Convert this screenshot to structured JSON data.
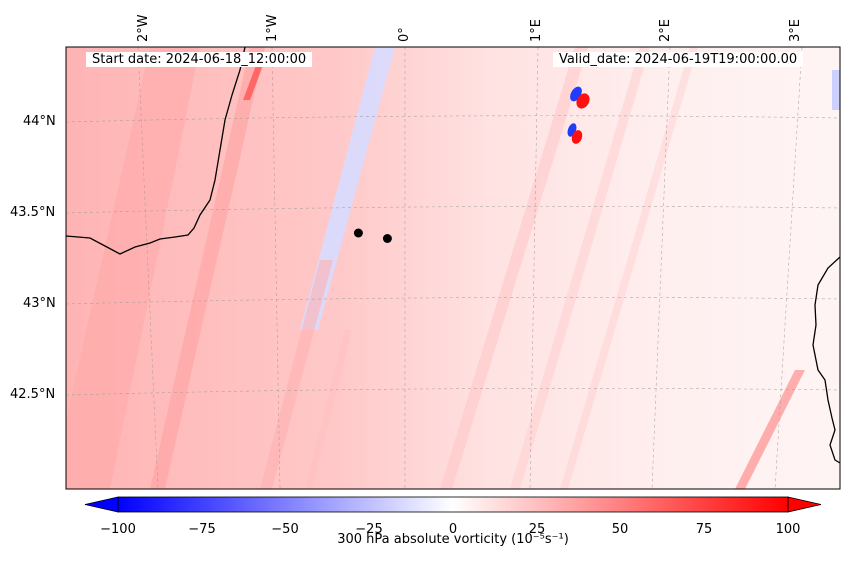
{
  "header": {
    "start_date": "Start date: 2024-06-18_12:00:00",
    "valid_date": "Valid_date: 2024-06-19T19:00:00.00"
  },
  "map": {
    "lon_labels": [
      "2°W",
      "1°W",
      "0°",
      "1°E",
      "2°E",
      "3°E"
    ],
    "lat_labels": [
      "44°N",
      "43.5°N",
      "43°N",
      "42.5°N"
    ],
    "markers": [
      {
        "lon": -0.35,
        "lat": 43.39
      },
      {
        "lon": -0.13,
        "lat": 43.36
      }
    ]
  },
  "colorbar": {
    "ticks": [
      "−100",
      "−75",
      "−50",
      "−25",
      "0",
      "25",
      "50",
      "75",
      "100"
    ],
    "title": "300 hPa absolute vorticity (10⁻⁵s⁻¹)",
    "min": -100,
    "max": 100,
    "extend": "both",
    "cmap": "bwr",
    "low_color": "#0000ff",
    "mid_color": "#ffffff",
    "high_color": "#ff0000"
  }
}
